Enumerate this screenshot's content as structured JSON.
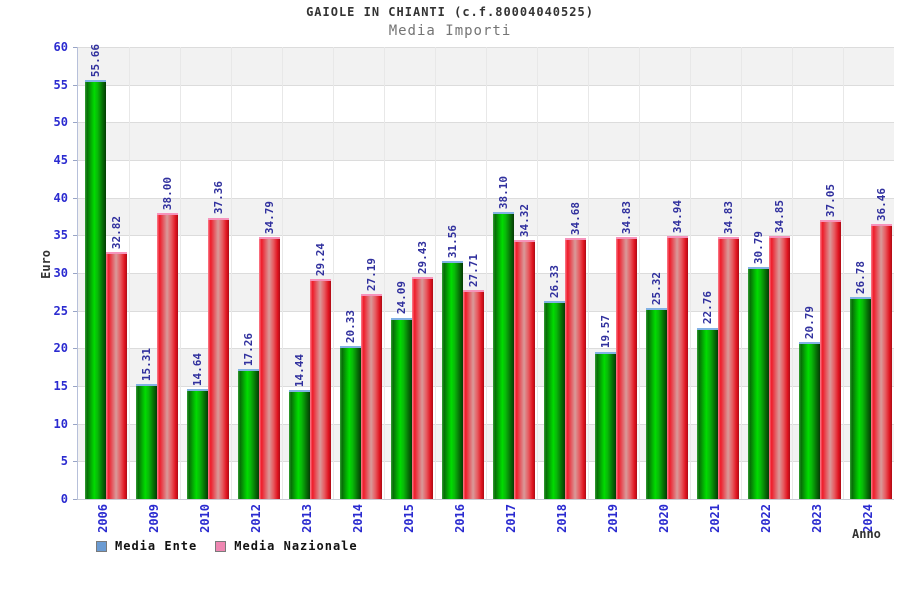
{
  "header": {
    "title": "GAIOLE IN CHIANTI (c.f.80004040525)",
    "subtitle": "Media Importi"
  },
  "axes": {
    "y_label": "Euro",
    "x_label": "Anno",
    "y_tick_labels": [
      "0",
      "5",
      "10",
      "15",
      "20",
      "25",
      "30",
      "35",
      "40",
      "45",
      "50",
      "55",
      "60"
    ]
  },
  "legend": {
    "items": [
      {
        "label": "Media Ente",
        "swatch_color": "#6b9bd2"
      },
      {
        "label": "Media Nazionale",
        "swatch_color": "#ef87b2"
      }
    ]
  },
  "chart_data": {
    "type": "bar",
    "title": "GAIOLE IN CHIANTI (c.f.80004040525)",
    "subtitle": "Media Importi",
    "xlabel": "Anno",
    "ylabel": "Euro",
    "ylim": [
      0,
      60
    ],
    "ytick_step": 5,
    "grid": true,
    "legend_position": "bottom-left",
    "value_labels": "rotated-90-above-bars",
    "categories": [
      "2006",
      "2009",
      "2010",
      "2012",
      "2013",
      "2014",
      "2015",
      "2016",
      "2017",
      "2018",
      "2019",
      "2020",
      "2021",
      "2022",
      "2023",
      "2024"
    ],
    "series": [
      {
        "name": "Media Ente",
        "bar_style": "green-cylinder-gradient",
        "values": [
          55.66,
          15.31,
          14.64,
          17.26,
          14.44,
          20.33,
          24.09,
          31.56,
          38.1,
          26.33,
          19.57,
          25.32,
          22.76,
          30.79,
          20.79,
          26.78
        ]
      },
      {
        "name": "Media Nazionale",
        "bar_style": "red-cylinder-gradient",
        "values": [
          32.82,
          38.0,
          37.36,
          34.79,
          29.24,
          27.19,
          29.43,
          27.71,
          34.32,
          34.68,
          34.83,
          34.94,
          34.83,
          34.85,
          37.05,
          36.46
        ]
      }
    ]
  },
  "colors": {
    "tick_label": "#2b2bd0",
    "value_label": "#31319e",
    "band_gray": "#f2f2f2",
    "gridline": "#dcdcdc",
    "green_bar_main": "#00dc00",
    "red_bar_main": "#ef1a28",
    "green_bar_cap": "#82b2e4",
    "red_bar_cap": "#f693bb"
  }
}
